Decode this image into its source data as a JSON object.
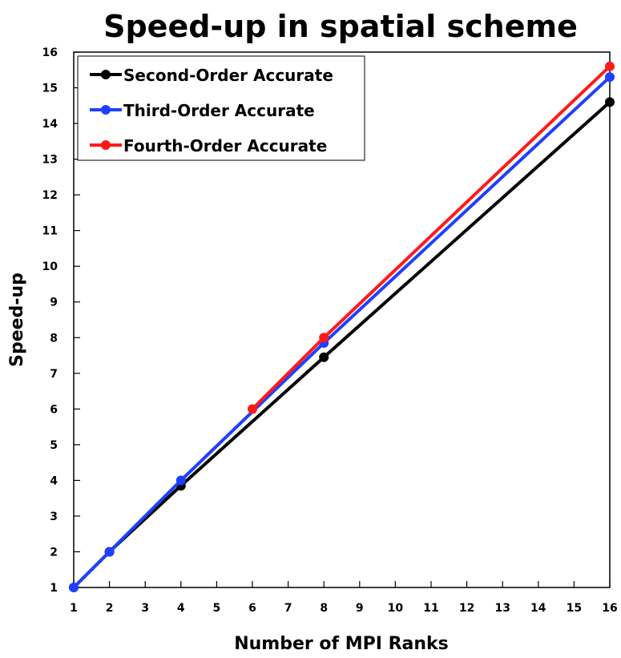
{
  "chart_data": {
    "type": "line",
    "title": "Speed-up in spatial scheme",
    "xlabel": "Number of MPI Ranks",
    "ylabel": "Speed-up",
    "xlim": [
      1,
      16
    ],
    "ylim": [
      1,
      16
    ],
    "x_ticks": [
      1,
      2,
      3,
      4,
      5,
      6,
      7,
      8,
      9,
      10,
      11,
      12,
      13,
      14,
      15,
      16
    ],
    "y_ticks": [
      1,
      2,
      3,
      4,
      5,
      6,
      7,
      8,
      9,
      10,
      11,
      12,
      13,
      14,
      15,
      16
    ],
    "grid": false,
    "legend_position": "top-left",
    "series": [
      {
        "name": "Second-Order Accurate",
        "color": "#000000",
        "x": [
          1,
          2,
          4,
          8,
          16
        ],
        "y": [
          1.0,
          2.0,
          3.85,
          7.45,
          14.6
        ]
      },
      {
        "name": "Third-Order Accurate",
        "color": "#1f3fff",
        "x": [
          1,
          2,
          4,
          8,
          16
        ],
        "y": [
          1.0,
          2.0,
          4.0,
          7.85,
          15.3
        ]
      },
      {
        "name": "Fourth-Order Accurate",
        "color": "#ff1a1a",
        "x": [
          6,
          8,
          16
        ],
        "y": [
          6.0,
          8.0,
          15.6
        ]
      }
    ]
  }
}
